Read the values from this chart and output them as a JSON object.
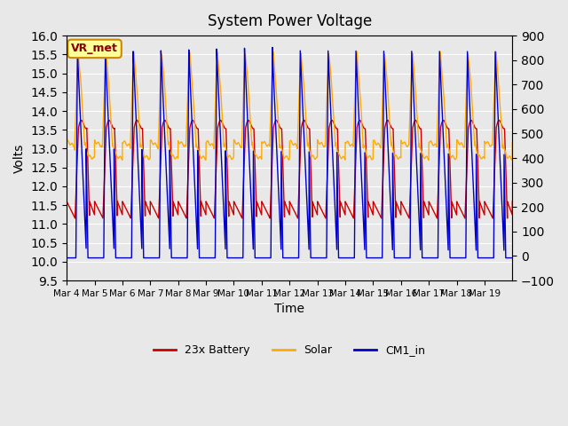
{
  "title": "System Power Voltage",
  "xlabel": "Time",
  "ylabel_left": "Volts",
  "ylim_left": [
    9.5,
    16.0
  ],
  "ylim_right": [
    -100,
    900
  ],
  "yticks_left": [
    9.5,
    10.0,
    10.5,
    11.0,
    11.5,
    12.0,
    12.5,
    13.0,
    13.5,
    14.0,
    14.5,
    15.0,
    15.5,
    16.0
  ],
  "yticks_right": [
    -100,
    0,
    100,
    200,
    300,
    400,
    500,
    600,
    700,
    800,
    900
  ],
  "xtick_labels": [
    "Mar 4",
    "Mar 5",
    "Mar 6",
    "Mar 7",
    "Mar 8",
    "Mar 9",
    "Mar 10",
    "Mar 11",
    "Mar 12",
    "Mar 13",
    "Mar 14",
    "Mar 15",
    "Mar 16",
    "Mar 17",
    "Mar 18",
    "Mar 19"
  ],
  "num_days": 16,
  "background_color": "#e8e8e8",
  "plot_bg_color": "#e8e8e8",
  "grid_color": "#ffffff",
  "color_battery": "#cc0000",
  "color_solar": "#ffaa00",
  "color_cm1": "#0000cc",
  "legend_labels": [
    "23x Battery",
    "Solar",
    "CM1_in"
  ],
  "annotation_text": "VR_met",
  "annotation_box_color": "#ffff99",
  "annotation_box_edge": "#cc8800"
}
